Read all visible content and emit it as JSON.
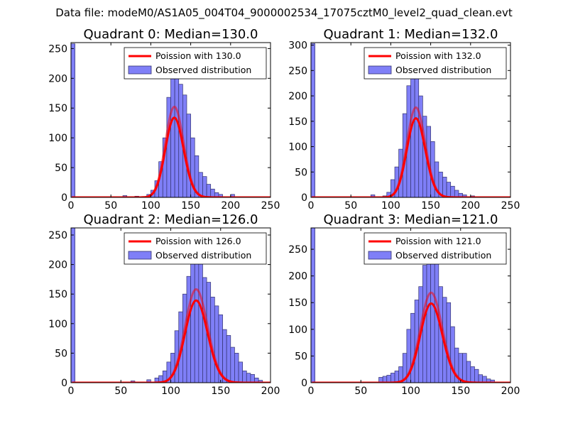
{
  "figure": {
    "suptitle": "Data file: modeM0/AS1A05_004T04_9000002534_17075cztM0_level2_quad_clean.evt"
  },
  "colors": {
    "hist_fill": "#7f7ff7",
    "hist_edge": "#33336e",
    "poisson_line": "#ff0000",
    "legend_edge": "#000000"
  },
  "chart_data": [
    {
      "type": "bar",
      "title": "Quadrant 0: Median=130.0",
      "xlim": [
        0,
        250
      ],
      "ylim": [
        0,
        260
      ],
      "xticks": [
        0,
        50,
        100,
        150,
        200,
        250
      ],
      "yticks": [
        0,
        50,
        100,
        150,
        200,
        250
      ],
      "legend": {
        "position": "top-right",
        "line_label": "Poission with 130.0",
        "bar_label": "Observed distribution"
      },
      "poisson_mean": 130.0,
      "poisson_scale": 4350,
      "bin_width": 5,
      "bins": [
        {
          "x": 0,
          "v": 258
        },
        {
          "x": 5,
          "v": 0
        },
        {
          "x": 65,
          "v": 3
        },
        {
          "x": 80,
          "v": 2
        },
        {
          "x": 95,
          "v": 5
        },
        {
          "x": 100,
          "v": 12
        },
        {
          "x": 105,
          "v": 28
        },
        {
          "x": 110,
          "v": 60
        },
        {
          "x": 115,
          "v": 100
        },
        {
          "x": 120,
          "v": 168
        },
        {
          "x": 125,
          "v": 205
        },
        {
          "x": 130,
          "v": 242
        },
        {
          "x": 135,
          "v": 190
        },
        {
          "x": 140,
          "v": 172
        },
        {
          "x": 145,
          "v": 140
        },
        {
          "x": 150,
          "v": 100
        },
        {
          "x": 155,
          "v": 70
        },
        {
          "x": 160,
          "v": 42
        },
        {
          "x": 165,
          "v": 35
        },
        {
          "x": 170,
          "v": 22
        },
        {
          "x": 175,
          "v": 14
        },
        {
          "x": 180,
          "v": 8
        },
        {
          "x": 185,
          "v": 5
        },
        {
          "x": 200,
          "v": 5
        }
      ]
    },
    {
      "type": "bar",
      "title": "Quadrant 1: Median=132.0",
      "xlim": [
        0,
        250
      ],
      "ylim": [
        0,
        305
      ],
      "xticks": [
        0,
        50,
        100,
        150,
        200,
        250
      ],
      "yticks": [
        0,
        50,
        100,
        150,
        200,
        250,
        300
      ],
      "legend": {
        "position": "top-right",
        "line_label": "Poission with 132.0",
        "bar_label": "Observed distribution"
      },
      "poisson_mean": 132.0,
      "poisson_scale": 5100,
      "bin_width": 5,
      "bins": [
        {
          "x": 0,
          "v": 303
        },
        {
          "x": 75,
          "v": 5
        },
        {
          "x": 90,
          "v": 3
        },
        {
          "x": 95,
          "v": 10
        },
        {
          "x": 100,
          "v": 35
        },
        {
          "x": 105,
          "v": 60
        },
        {
          "x": 110,
          "v": 95
        },
        {
          "x": 115,
          "v": 165
        },
        {
          "x": 120,
          "v": 220
        },
        {
          "x": 125,
          "v": 244
        },
        {
          "x": 130,
          "v": 280
        },
        {
          "x": 135,
          "v": 200
        },
        {
          "x": 140,
          "v": 160
        },
        {
          "x": 145,
          "v": 140
        },
        {
          "x": 150,
          "v": 110
        },
        {
          "x": 155,
          "v": 70
        },
        {
          "x": 160,
          "v": 50
        },
        {
          "x": 165,
          "v": 40
        },
        {
          "x": 170,
          "v": 30
        },
        {
          "x": 175,
          "v": 22
        },
        {
          "x": 180,
          "v": 14
        },
        {
          "x": 185,
          "v": 8
        },
        {
          "x": 190,
          "v": 5
        },
        {
          "x": 200,
          "v": 3
        }
      ]
    },
    {
      "type": "bar",
      "title": "Quadrant 2: Median=126.0",
      "xlim": [
        0,
        200
      ],
      "ylim": [
        0,
        262
      ],
      "xticks": [
        0,
        50,
        100,
        150,
        200
      ],
      "yticks": [
        0,
        50,
        100,
        150,
        200,
        250
      ],
      "legend": {
        "position": "top-right",
        "line_label": "Poission with 126.0",
        "bar_label": "Observed distribution"
      },
      "poisson_mean": 126.0,
      "poisson_scale": 4450,
      "bin_width": 4,
      "bins": [
        {
          "x": 0,
          "v": 262
        },
        {
          "x": 60,
          "v": 3
        },
        {
          "x": 76,
          "v": 5
        },
        {
          "x": 84,
          "v": 8
        },
        {
          "x": 88,
          "v": 12
        },
        {
          "x": 92,
          "v": 20
        },
        {
          "x": 96,
          "v": 35
        },
        {
          "x": 100,
          "v": 50
        },
        {
          "x": 104,
          "v": 88
        },
        {
          "x": 108,
          "v": 120
        },
        {
          "x": 112,
          "v": 150
        },
        {
          "x": 116,
          "v": 180
        },
        {
          "x": 120,
          "v": 205
        },
        {
          "x": 124,
          "v": 225
        },
        {
          "x": 128,
          "v": 205
        },
        {
          "x": 132,
          "v": 178
        },
        {
          "x": 136,
          "v": 170
        },
        {
          "x": 140,
          "v": 145
        },
        {
          "x": 144,
          "v": 130
        },
        {
          "x": 148,
          "v": 115
        },
        {
          "x": 152,
          "v": 90
        },
        {
          "x": 156,
          "v": 80
        },
        {
          "x": 160,
          "v": 60
        },
        {
          "x": 164,
          "v": 50
        },
        {
          "x": 168,
          "v": 35
        },
        {
          "x": 172,
          "v": 20
        },
        {
          "x": 176,
          "v": 16
        },
        {
          "x": 180,
          "v": 14
        },
        {
          "x": 184,
          "v": 8
        },
        {
          "x": 188,
          "v": 4
        }
      ]
    },
    {
      "type": "bar",
      "title": "Quadrant 3: Median=121.0",
      "xlim": [
        0,
        200
      ],
      "ylim": [
        0,
        290
      ],
      "xticks": [
        0,
        50,
        100,
        150,
        200
      ],
      "yticks": [
        0,
        50,
        100,
        150,
        200,
        250
      ],
      "legend": {
        "position": "top-right",
        "line_label": "Poission with 121.0",
        "bar_label": "Observed distribution"
      },
      "poisson_mean": 121.0,
      "poisson_scale": 4650,
      "bin_width": 4,
      "bins": [
        {
          "x": 0,
          "v": 290
        },
        {
          "x": 68,
          "v": 10
        },
        {
          "x": 72,
          "v": 12
        },
        {
          "x": 76,
          "v": 14
        },
        {
          "x": 80,
          "v": 18
        },
        {
          "x": 84,
          "v": 22
        },
        {
          "x": 88,
          "v": 30
        },
        {
          "x": 92,
          "v": 55
        },
        {
          "x": 96,
          "v": 100
        },
        {
          "x": 100,
          "v": 130
        },
        {
          "x": 104,
          "v": 155
        },
        {
          "x": 108,
          "v": 180
        },
        {
          "x": 112,
          "v": 220
        },
        {
          "x": 116,
          "v": 270
        },
        {
          "x": 120,
          "v": 258
        },
        {
          "x": 124,
          "v": 225
        },
        {
          "x": 128,
          "v": 180
        },
        {
          "x": 132,
          "v": 160
        },
        {
          "x": 136,
          "v": 150
        },
        {
          "x": 140,
          "v": 105
        },
        {
          "x": 144,
          "v": 65
        },
        {
          "x": 148,
          "v": 55
        },
        {
          "x": 152,
          "v": 55
        },
        {
          "x": 156,
          "v": 40
        },
        {
          "x": 160,
          "v": 30
        },
        {
          "x": 164,
          "v": 25
        },
        {
          "x": 168,
          "v": 15
        },
        {
          "x": 172,
          "v": 12
        },
        {
          "x": 176,
          "v": 7
        },
        {
          "x": 180,
          "v": 5
        }
      ]
    }
  ]
}
